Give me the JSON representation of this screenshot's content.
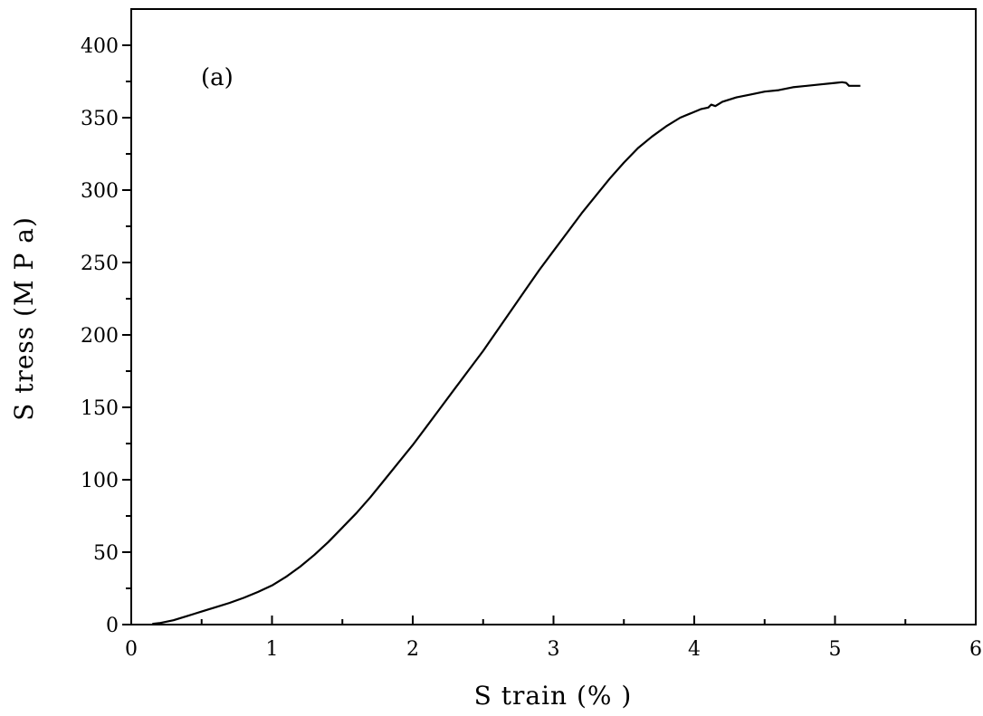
{
  "chart_data": {
    "type": "line",
    "title": "",
    "xlabel": "S train (% )",
    "ylabel": "S tress (M P a)",
    "xlim": [
      0,
      6
    ],
    "ylim": [
      0,
      425
    ],
    "x_ticks": [
      "0",
      "1",
      "2",
      "3",
      "4",
      "5",
      "6"
    ],
    "y_ticks": [
      "0",
      "50",
      "100",
      "150",
      "200",
      "250",
      "300",
      "350",
      "400"
    ],
    "grid": false,
    "legend": "none",
    "annotations": [
      {
        "text": "(a)"
      }
    ],
    "series": [
      {
        "color": "#000000",
        "x": [
          0.15,
          0.2,
          0.25,
          0.3,
          0.35,
          0.4,
          0.45,
          0.5,
          0.55,
          0.6,
          0.7,
          0.8,
          0.9,
          1.0,
          1.1,
          1.2,
          1.3,
          1.4,
          1.5,
          1.6,
          1.7,
          1.8,
          1.9,
          2.0,
          2.1,
          2.2,
          2.3,
          2.4,
          2.5,
          2.6,
          2.7,
          2.8,
          2.9,
          3.0,
          3.1,
          3.2,
          3.3,
          3.4,
          3.5,
          3.6,
          3.7,
          3.8,
          3.9,
          4.0,
          4.05,
          4.1,
          4.12,
          4.15,
          4.2,
          4.3,
          4.4,
          4.5,
          4.6,
          4.7,
          4.8,
          4.9,
          5.0,
          5.05,
          5.08,
          5.1,
          5.12,
          5.18
        ],
        "y": [
          0.5,
          1,
          2,
          3,
          4.5,
          6,
          7.5,
          9,
          10.5,
          12,
          15,
          18.5,
          22.5,
          27,
          33,
          40,
          48,
          57,
          67,
          77,
          88,
          100,
          112,
          124,
          137,
          150,
          163,
          176,
          189,
          203,
          217,
          231,
          245,
          258,
          271,
          284,
          296,
          308,
          319,
          329,
          337,
          344,
          350,
          354,
          356,
          357,
          359,
          358,
          361,
          364,
          366,
          368,
          369,
          371,
          372,
          373,
          374,
          374.5,
          374,
          372,
          372,
          372
        ]
      }
    ]
  }
}
